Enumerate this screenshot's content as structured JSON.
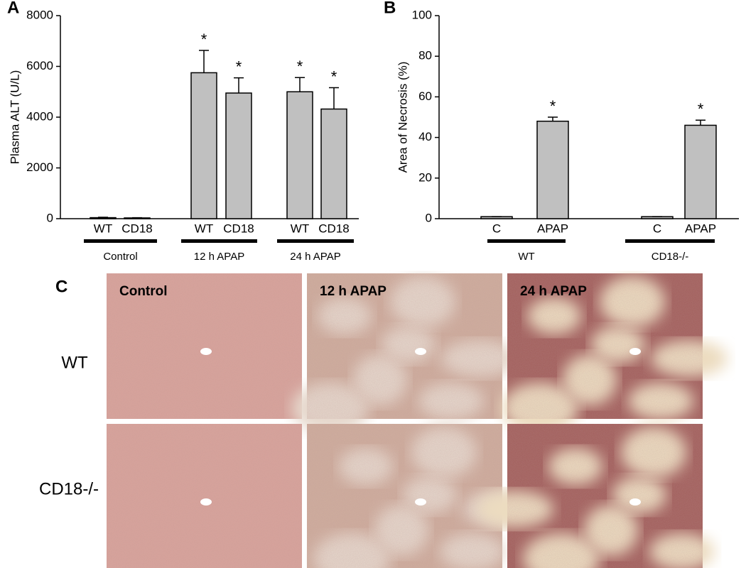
{
  "chart_data": [
    {
      "type": "bar",
      "panel": "A",
      "ylabel": "Plasma ALT (U/L)",
      "categories": [
        "WT",
        "CD18",
        "WT",
        "CD18",
        "WT",
        "CD18"
      ],
      "groups": [
        "Control",
        "12 h APAP",
        "24 h APAP"
      ],
      "values": [
        40,
        30,
        5750,
        4950,
        5000,
        4320
      ],
      "errors": [
        15,
        10,
        880,
        600,
        560,
        840
      ],
      "annotations": [
        null,
        null,
        "*",
        "*",
        "*",
        "*"
      ],
      "color": "#c0c0c0",
      "ylim": [
        0,
        8000
      ],
      "yticks": [
        0,
        2000,
        4000,
        6000,
        8000
      ]
    },
    {
      "type": "bar",
      "panel": "B",
      "ylabel": "Area of Necrosis (%)",
      "categories": [
        "C",
        "APAP",
        "C",
        "APAP"
      ],
      "groups": [
        "WT",
        "CD18-/-"
      ],
      "values": [
        1,
        48,
        1,
        46
      ],
      "errors": [
        0,
        2,
        0,
        2.5
      ],
      "annotations": [
        null,
        "*",
        null,
        "*"
      ],
      "color": "#c0c0c0",
      "ylim": [
        0,
        100
      ],
      "yticks": [
        0,
        20,
        40,
        60,
        80,
        100
      ]
    }
  ],
  "panel_c": {
    "panel": "C",
    "columns": [
      "Control",
      "12 h APAP",
      "24 h APAP"
    ],
    "rows": [
      "WT",
      "CD18-/-"
    ]
  }
}
